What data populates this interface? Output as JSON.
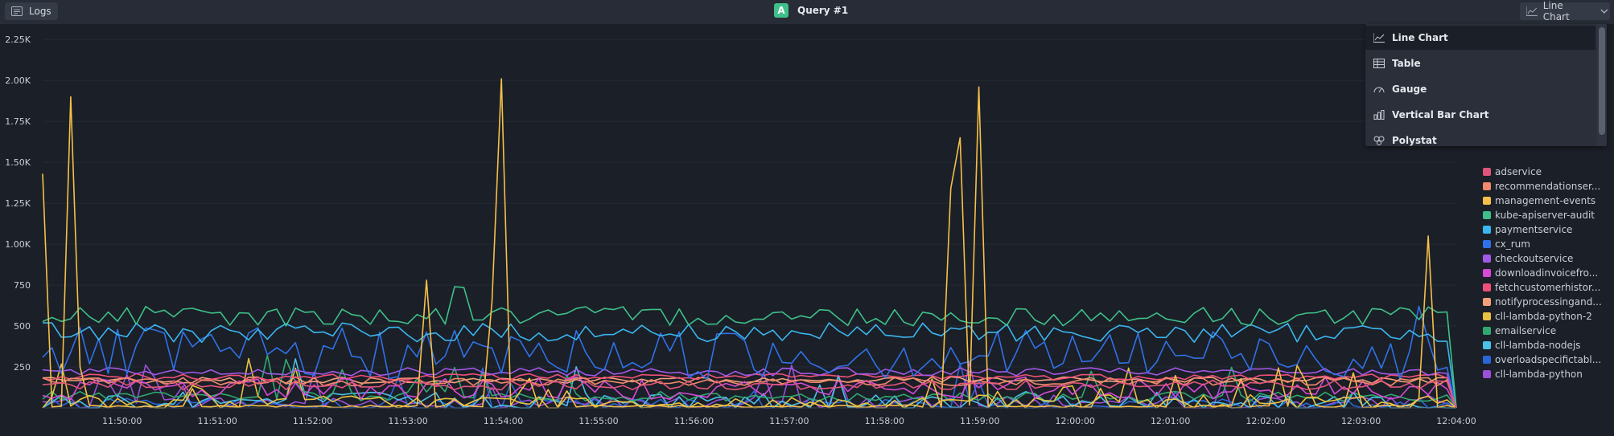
{
  "toolbar": {
    "logs_label": "Logs",
    "query_badge": "A",
    "query_title": "Query #1",
    "chart_type_label": "Line Chart"
  },
  "dropdown": {
    "items": [
      {
        "label": "Line Chart",
        "icon": "line-chart-icon",
        "selected": true
      },
      {
        "label": "Table",
        "icon": "table-icon",
        "selected": false
      },
      {
        "label": "Gauge",
        "icon": "gauge-icon",
        "selected": false
      },
      {
        "label": "Vertical Bar Chart",
        "icon": "bar-chart-icon",
        "selected": false
      },
      {
        "label": "Polystat",
        "icon": "polystat-icon",
        "selected": false
      }
    ]
  },
  "chart_data": {
    "type": "line",
    "y_ticks": [
      "250",
      "500",
      "750",
      "1.00K",
      "1.25K",
      "1.50K",
      "1.75K",
      "2.00K",
      "2.25K"
    ],
    "ylim": [
      0,
      2300
    ],
    "x_ticks": [
      "11:50:00",
      "11:51:00",
      "11:52:00",
      "11:53:00",
      "11:54:00",
      "11:55:00",
      "11:56:00",
      "11:57:00",
      "11:58:00",
      "11:59:00",
      "12:00:00",
      "12:01:00",
      "12:02:00",
      "12:03:00",
      "12:04:00"
    ],
    "xlim": [
      "11:49:10",
      "12:04:00"
    ],
    "grid": true,
    "legend_placement": "right",
    "series": [
      {
        "name": "adservice",
        "color": "#e0557a",
        "base": 140,
        "amp": 30,
        "spikes": []
      },
      {
        "name": "recommendationser...",
        "color": "#f08a6a",
        "base": 160,
        "amp": 25,
        "spikes": []
      },
      {
        "name": "management-events",
        "color": "#f5c04a",
        "base": 10,
        "amp": 8,
        "spikes": [
          [
            0,
            1430
          ],
          [
            3,
            1900
          ],
          [
            4,
            250
          ],
          [
            41,
            780
          ],
          [
            44,
            50
          ],
          [
            48,
            650
          ],
          [
            49,
            2010
          ],
          [
            51,
            100
          ],
          [
            97,
            1340
          ],
          [
            98,
            1650
          ],
          [
            100,
            1960
          ],
          [
            102,
            100
          ],
          [
            148,
            1050
          ],
          [
            151,
            0
          ]
        ]
      },
      {
        "name": "kube-apiserver-audit",
        "color": "#3ec08a",
        "base": 560,
        "amp": 60,
        "spikes": [
          [
            44,
            740
          ],
          [
            45,
            735
          ]
        ]
      },
      {
        "name": "paymentservice",
        "color": "#3ab6f0",
        "base": 460,
        "amp": 60,
        "spikes": []
      },
      {
        "name": "cx_rum",
        "color": "#2f72e8",
        "base": 330,
        "amp": 160,
        "spikes": [
          [
            147,
            620
          ]
        ]
      },
      {
        "name": "checkoutservice",
        "color": "#a259e6",
        "base": 220,
        "amp": 25,
        "spikes": []
      },
      {
        "name": "downloadinvoicefro...",
        "color": "#d64ad8",
        "base": 120,
        "amp": 70,
        "spikes": []
      },
      {
        "name": "fetchcustomerhistor...",
        "color": "#f0507a",
        "base": 190,
        "amp": 20,
        "spikes": []
      },
      {
        "name": "notifyprocessingand...",
        "color": "#f2a07a",
        "base": 170,
        "amp": 20,
        "spikes": []
      },
      {
        "name": "cll-lambda-python-2",
        "color": "#e8c240",
        "base": 30,
        "amp": 50,
        "spikes": []
      },
      {
        "name": "emailservice",
        "color": "#2fa870",
        "base": 70,
        "amp": 30,
        "spikes": []
      },
      {
        "name": "cll-lambda-nodejs",
        "color": "#4bc0e8",
        "base": 40,
        "amp": 60,
        "spikes": []
      },
      {
        "name": "overloadspecifictabl...",
        "color": "#2a66d8",
        "base": 20,
        "amp": 40,
        "spikes": []
      },
      {
        "name": "cll-lambda-python",
        "color": "#9a50d8",
        "base": 30,
        "amp": 40,
        "spikes": []
      }
    ]
  }
}
